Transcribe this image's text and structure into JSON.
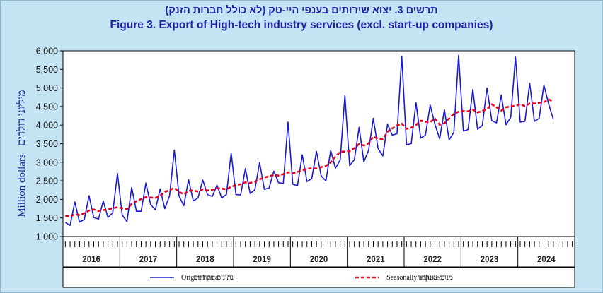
{
  "title_hebrew": "תרשים 3. יצוא שירותים בענפי היי-טק (לא כולל חברות הזנק)",
  "title_english": "Figure 3. Export of High-tech industry services (excl. start-up companies)",
  "ylabel_english": "Million dollars",
  "ylabel_hebrew": "מיליוני דולרים",
  "legend": {
    "original_en": "Original data",
    "original_he": "נתונים מקוריים",
    "seasonal_en": "Seasonally adjusted",
    "seasonal_he": "מנוכי עונתיות"
  },
  "colors": {
    "background": "#c4e3f3",
    "title": "#1f1fa8",
    "original": "#1a1ad6",
    "seasonal": "#e8001c"
  },
  "chart_data": {
    "type": "line",
    "x_unit": "month",
    "x_start": "2016-01",
    "x_end": "2024-12",
    "ylim": [
      1000,
      6000
    ],
    "yticks": [
      1000,
      1500,
      2000,
      2500,
      3000,
      3500,
      4000,
      4500,
      5000,
      5500,
      6000
    ],
    "ytick_labels": [
      "1,000",
      "1,500",
      "2,000",
      "2,500",
      "3,000",
      "3,500",
      "4,000",
      "4,500",
      "5,000",
      "5,500",
      "6,000"
    ],
    "years": [
      "2016",
      "2017",
      "2018",
      "2019",
      "2020",
      "2021",
      "2022",
      "2023",
      "2024"
    ],
    "grid": false,
    "legend_position": "bottom",
    "series": [
      {
        "name": "Original data",
        "style": "solid",
        "values": [
          1380,
          1300,
          1930,
          1390,
          1460,
          2100,
          1510,
          1470,
          1960,
          1510,
          1640,
          2700,
          1580,
          1400,
          2320,
          1680,
          1680,
          2440,
          1860,
          1720,
          2280,
          1750,
          2100,
          3330,
          2090,
          1830,
          2530,
          1960,
          2040,
          2520,
          2130,
          2080,
          2380,
          2040,
          2130,
          3250,
          2130,
          2120,
          2830,
          2160,
          2260,
          2990,
          2270,
          2310,
          2760,
          2450,
          2430,
          4080,
          2410,
          2370,
          3200,
          2480,
          2560,
          3290,
          2630,
          2500,
          3320,
          2840,
          3060,
          4800,
          2910,
          3070,
          3940,
          3010,
          3320,
          4180,
          3370,
          3170,
          4020,
          3730,
          3770,
          5850,
          3470,
          3500,
          4600,
          3650,
          3730,
          4540,
          4020,
          3630,
          4410,
          3600,
          3810,
          5880,
          3840,
          3880,
          4960,
          3890,
          3990,
          5000,
          4120,
          4060,
          4810,
          4010,
          4210,
          5830,
          4080,
          4100,
          5130,
          4100,
          4180,
          5080,
          4570,
          4150
        ]
      },
      {
        "name": "Seasonally adjusted",
        "style": "dashed",
        "values": [
          1560,
          1540,
          1600,
          1580,
          1630,
          1700,
          1730,
          1690,
          1710,
          1740,
          1760,
          1790,
          1760,
          1740,
          1880,
          1950,
          2010,
          2060,
          2050,
          2040,
          2100,
          2200,
          2250,
          2310,
          2200,
          2140,
          2230,
          2240,
          2210,
          2270,
          2240,
          2260,
          2300,
          2290,
          2270,
          2340,
          2380,
          2410,
          2460,
          2440,
          2480,
          2540,
          2590,
          2620,
          2660,
          2640,
          2680,
          2730,
          2700,
          2740,
          2780,
          2820,
          2840,
          2830,
          2870,
          2900,
          3000,
          3150,
          3280,
          3290,
          3300,
          3380,
          3490,
          3450,
          3510,
          3690,
          3630,
          3620,
          3820,
          3910,
          3990,
          4040,
          3900,
          3930,
          4000,
          4120,
          4090,
          4080,
          4180,
          4010,
          4050,
          4180,
          4300,
          4360,
          4380,
          4370,
          4420,
          4340,
          4380,
          4430,
          4560,
          4480,
          4390,
          4480,
          4500,
          4520,
          4560,
          4510,
          4580,
          4580,
          4600,
          4620,
          4690,
          4640
        ]
      }
    ]
  }
}
